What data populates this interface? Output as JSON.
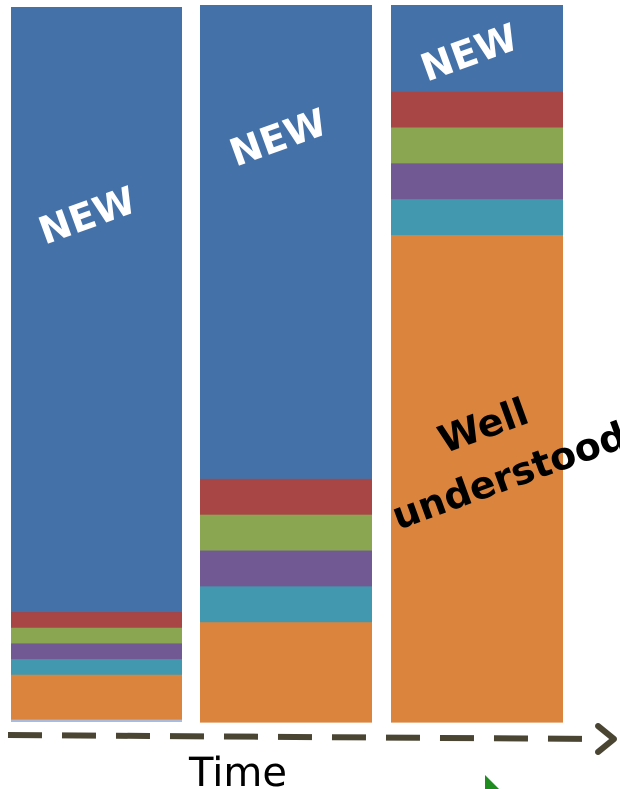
{
  "labels": {
    "new": "NEW",
    "well_line1": "Well",
    "well_line2": "understood",
    "axis": "Time"
  },
  "segment_order": [
    "orange",
    "cyan",
    "purple",
    "green",
    "red",
    "blue"
  ],
  "colors": {
    "blue": "#4472A8",
    "red": "#A84545",
    "green": "#8BA650",
    "purple": "#715A93",
    "cyan": "#4298AE",
    "orange": "#DA843E",
    "lavender": "#A9BCE0",
    "arrow": "#4A4433",
    "pointer": "#1E8C1E"
  },
  "bars": [
    {
      "name": "bar-1",
      "segments": {
        "orange": 0.063,
        "cyan": 0.022,
        "purple": 0.022,
        "green": 0.022,
        "red": 0.022,
        "blue": 0.849
      },
      "has_base_strip": true,
      "new_label": true
    },
    {
      "name": "bar-2",
      "segments": {
        "orange": 0.14,
        "cyan": 0.05,
        "purple": 0.05,
        "green": 0.05,
        "red": 0.05,
        "blue": 0.66
      },
      "has_base_strip": false,
      "new_label": true
    },
    {
      "name": "bar-3",
      "segments": {
        "orange": 0.68,
        "cyan": 0.05,
        "purple": 0.05,
        "green": 0.05,
        "red": 0.05,
        "blue": 0.12
      },
      "has_base_strip": false,
      "new_label": true,
      "well_label": true
    }
  ]
}
